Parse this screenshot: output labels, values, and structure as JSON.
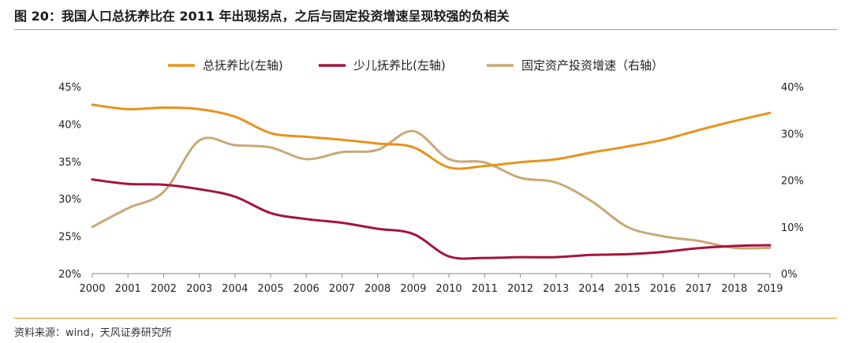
{
  "figure": {
    "title": "图 20：我国人口总抚养比在 2011 年出现拐点，之后与固定投资增速呈现较强的负相关",
    "source": "资料来源：wind，天风证券研究所"
  },
  "chart_data": {
    "type": "line",
    "x": [
      "2000",
      "2001",
      "2002",
      "2003",
      "2004",
      "2005",
      "2006",
      "2007",
      "2008",
      "2009",
      "2010",
      "2011",
      "2012",
      "2013",
      "2014",
      "2015",
      "2016",
      "2017",
      "2018",
      "2019"
    ],
    "left_axis": {
      "ylim": [
        20,
        45
      ],
      "ticks": [
        "20%",
        "25%",
        "30%",
        "35%",
        "40%",
        "45%"
      ],
      "tick_values": [
        20,
        25,
        30,
        35,
        40,
        45
      ]
    },
    "right_axis": {
      "ylim": [
        0,
        40
      ],
      "ticks": [
        "0%",
        "10%",
        "20%",
        "30%",
        "40%"
      ],
      "tick_values": [
        0,
        10,
        20,
        30,
        40
      ]
    },
    "grid": false,
    "legend_position": "top",
    "series": [
      {
        "name": "总抚养比(左轴)",
        "axis": "left",
        "color": "#e8921c",
        "values": [
          42.6,
          42.0,
          42.2,
          42.0,
          41.0,
          38.8,
          38.3,
          37.9,
          37.4,
          36.9,
          34.2,
          34.4,
          34.9,
          35.3,
          36.2,
          37.0,
          37.9,
          39.2,
          40.4,
          41.5
        ]
      },
      {
        "name": "少儿抚养比(左轴)",
        "axis": "left",
        "color": "#a3153c",
        "values": [
          32.6,
          32.0,
          31.9,
          31.3,
          30.3,
          28.1,
          27.3,
          26.8,
          26.0,
          25.3,
          22.3,
          22.1,
          22.2,
          22.2,
          22.5,
          22.6,
          22.9,
          23.4,
          23.7,
          23.8
        ]
      },
      {
        "name": "固定资产投资增速（右轴）",
        "axis": "right",
        "color": "#c9a878",
        "values": [
          10.0,
          14.0,
          17.5,
          28.5,
          27.5,
          27.0,
          24.5,
          26.0,
          26.5,
          30.5,
          24.5,
          23.8,
          20.5,
          19.5,
          15.5,
          10.0,
          8.0,
          7.0,
          5.5,
          5.5
        ]
      }
    ]
  }
}
